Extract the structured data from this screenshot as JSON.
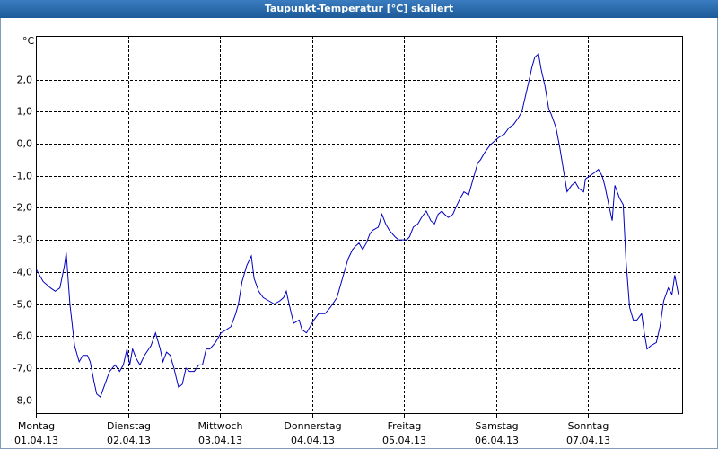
{
  "chart_data": {
    "type": "line",
    "title": "Taupunkt-Temperatur [°C] skaliert",
    "y_unit": "°C",
    "color": "#0000c0",
    "grid": true,
    "xlim": [
      0,
      7.02
    ],
    "ylim": [
      -8.4,
      3.36
    ],
    "xticks": [
      {
        "value": 0,
        "day": "Montag",
        "date": "01.04.13"
      },
      {
        "value": 1,
        "day": "Dienstag",
        "date": "02.04.13"
      },
      {
        "value": 2,
        "day": "Mittwoch",
        "date": "03.04.13"
      },
      {
        "value": 3,
        "day": "Donnerstag",
        "date": "04.04.13"
      },
      {
        "value": 4,
        "day": "Freitag",
        "date": "05.04.13"
      },
      {
        "value": 5,
        "day": "Samstag",
        "date": "06.04.13"
      },
      {
        "value": 6,
        "day": "Sonntag",
        "date": "07.04.13"
      }
    ],
    "yticks": [
      {
        "value": 2,
        "label": "2,0"
      },
      {
        "value": 1,
        "label": "1,0"
      },
      {
        "value": 0,
        "label": "0,0"
      },
      {
        "value": -1,
        "label": "-1,0"
      },
      {
        "value": -2,
        "label": "-2,0"
      },
      {
        "value": -3,
        "label": "-3,0"
      },
      {
        "value": -4,
        "label": "-4,0"
      },
      {
        "value": -5,
        "label": "-5,0"
      },
      {
        "value": -6,
        "label": "-6,0"
      },
      {
        "value": -7,
        "label": "-7,0"
      },
      {
        "value": -8,
        "label": "-8,0"
      }
    ],
    "x": [
      0,
      0.08,
      0.16,
      0.21,
      0.26,
      0.31,
      0.33,
      0.37,
      0.42,
      0.47,
      0.51,
      0.56,
      0.59,
      0.63,
      0.66,
      0.7,
      0.75,
      0.8,
      0.86,
      0.91,
      0.95,
      0.99,
      1.02,
      1.05,
      1.09,
      1.13,
      1.18,
      1.25,
      1.3,
      1.35,
      1.38,
      1.42,
      1.46,
      1.5,
      1.55,
      1.59,
      1.63,
      1.67,
      1.72,
      1.77,
      1.81,
      1.85,
      1.89,
      1.95,
      2.01,
      2.07,
      2.12,
      2.17,
      2.2,
      2.24,
      2.29,
      2.34,
      2.37,
      2.42,
      2.47,
      2.53,
      2.59,
      2.65,
      2.69,
      2.72,
      2.75,
      2.8,
      2.86,
      2.89,
      2.94,
      2.98,
      3.02,
      3.07,
      3.14,
      3.2,
      3.27,
      3.32,
      3.39,
      3.44,
      3.47,
      3.51,
      3.55,
      3.59,
      3.63,
      3.66,
      3.72,
      3.76,
      3.8,
      3.84,
      3.9,
      3.94,
      3.98,
      4.03,
      4.06,
      4.1,
      4.15,
      4.19,
      4.24,
      4.29,
      4.33,
      4.37,
      4.41,
      4.44,
      4.48,
      4.53,
      4.56,
      4.61,
      4.65,
      4.7,
      4.76,
      4.8,
      4.83,
      4.87,
      4.92,
      4.95,
      4.99,
      5.03,
      5.09,
      5.14,
      5.19,
      5.24,
      5.28,
      5.32,
      5.36,
      5.39,
      5.42,
      5.46,
      5.49,
      5.53,
      5.57,
      5.6,
      5.65,
      5.69,
      5.73,
      5.77,
      5.82,
      5.86,
      5.9,
      5.95,
      5.97,
      6.02,
      6.07,
      6.11,
      6.15,
      6.18,
      6.23,
      6.26,
      6.29,
      6.34,
      6.38,
      6.41,
      6.45,
      6.49,
      6.53,
      6.58,
      6.61,
      6.64,
      6.68,
      6.74,
      6.78,
      6.82,
      6.87,
      6.91,
      6.94,
      6.98
    ],
    "values": [
      -3.9,
      -4.3,
      -4.5,
      -4.6,
      -4.5,
      -3.8,
      -3.4,
      -5.0,
      -6.3,
      -6.8,
      -6.6,
      -6.6,
      -6.8,
      -7.4,
      -7.8,
      -7.9,
      -7.5,
      -7.1,
      -6.9,
      -7.1,
      -6.9,
      -6.4,
      -6.9,
      -6.4,
      -6.7,
      -6.9,
      -6.6,
      -6.3,
      -5.9,
      -6.4,
      -6.8,
      -6.5,
      -6.6,
      -7.0,
      -7.6,
      -7.5,
      -7.0,
      -7.1,
      -7.1,
      -6.9,
      -6.9,
      -6.4,
      -6.4,
      -6.2,
      -5.9,
      -5.8,
      -5.7,
      -5.3,
      -5.0,
      -4.3,
      -3.8,
      -3.5,
      -4.2,
      -4.6,
      -4.8,
      -4.9,
      -5.0,
      -4.9,
      -4.8,
      -4.6,
      -5.0,
      -5.6,
      -5.5,
      -5.8,
      -5.9,
      -5.7,
      -5.5,
      -5.3,
      -5.3,
      -5.1,
      -4.8,
      -4.3,
      -3.6,
      -3.3,
      -3.2,
      -3.1,
      -3.3,
      -3.1,
      -2.8,
      -2.7,
      -2.6,
      -2.2,
      -2.5,
      -2.7,
      -2.9,
      -3.0,
      -3.0,
      -3.0,
      -2.9,
      -2.6,
      -2.5,
      -2.3,
      -2.1,
      -2.4,
      -2.5,
      -2.2,
      -2.1,
      -2.2,
      -2.3,
      -2.2,
      -2.0,
      -1.7,
      -1.5,
      -1.6,
      -1.0,
      -0.6,
      -0.5,
      -0.3,
      -0.1,
      0.0,
      0.1,
      0.2,
      0.3,
      0.5,
      0.6,
      0.8,
      1.0,
      1.5,
      2.0,
      2.4,
      2.7,
      2.8,
      2.3,
      1.8,
      1.1,
      0.9,
      0.5,
      -0.1,
      -0.8,
      -1.5,
      -1.3,
      -1.2,
      -1.4,
      -1.5,
      -1.1,
      -1.0,
      -0.9,
      -0.8,
      -1.0,
      -1.3,
      -2.0,
      -2.4,
      -1.3,
      -1.7,
      -1.9,
      -3.6,
      -5.1,
      -5.5,
      -5.5,
      -5.3,
      -5.9,
      -6.4,
      -6.3,
      -6.2,
      -5.7,
      -4.9,
      -4.5,
      -4.7,
      -4.1,
      -4.7
    ]
  }
}
